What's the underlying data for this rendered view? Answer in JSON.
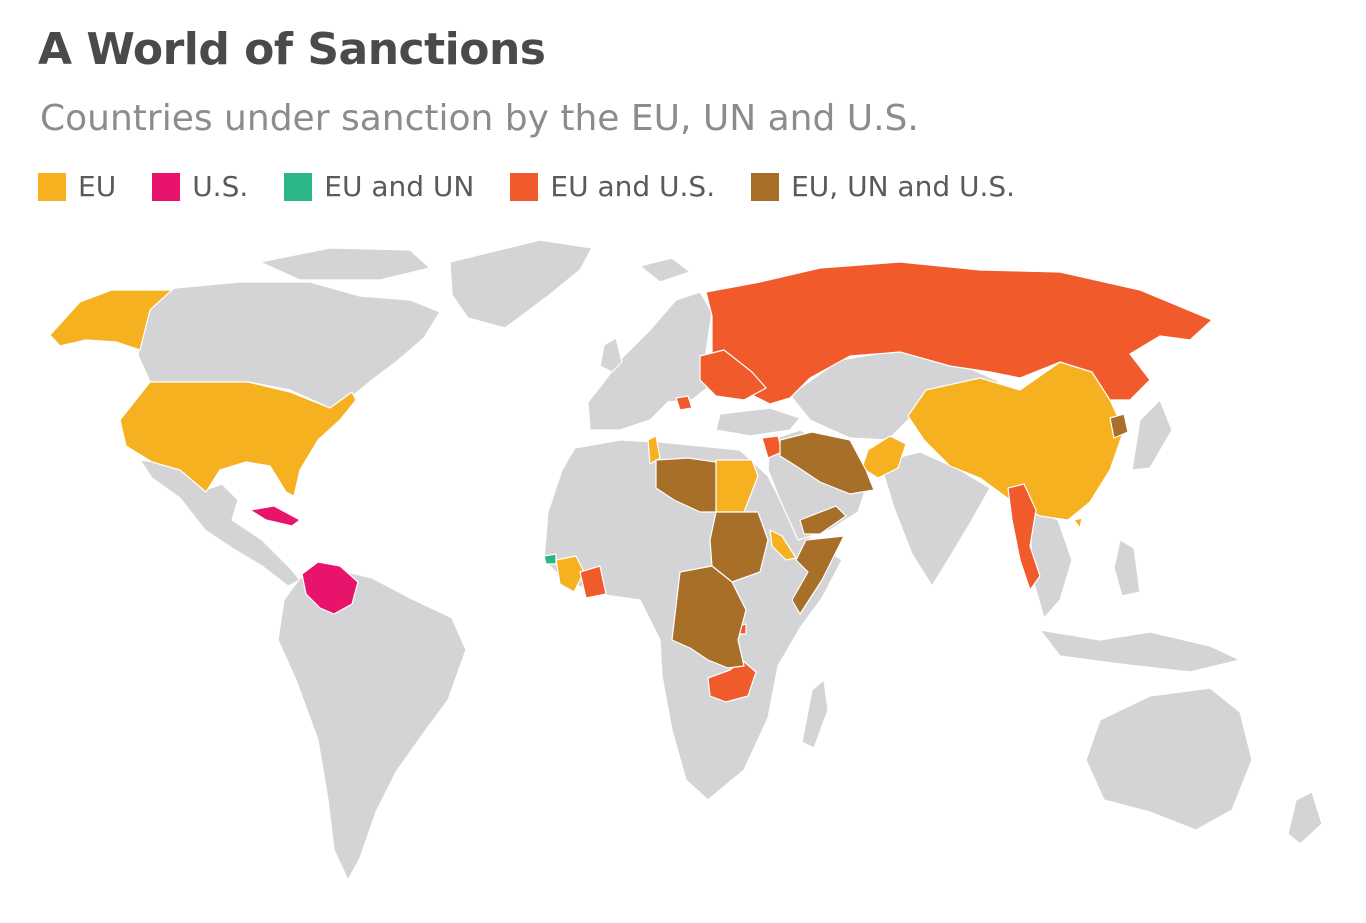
{
  "title": "A World of Sanctions",
  "subtitle": "Countries under sanction by the EU, UN and U.S.",
  "colors": {
    "land": "#d4d4d6",
    "eu": "#f5b120",
    "us": "#e8146c",
    "eu_un": "#2bb68a",
    "eu_us": "#f15a2b",
    "eu_un_us": "#a86f28"
  },
  "legend": [
    {
      "label": "EU",
      "color": "#f5b120"
    },
    {
      "label": "U.S.",
      "color": "#e8146c"
    },
    {
      "label": "EU and UN",
      "color": "#2bb68a"
    },
    {
      "label": "EU and U.S.",
      "color": "#f15a2b"
    },
    {
      "label": "EU, UN and U.S.",
      "color": "#a86f28"
    }
  ]
}
